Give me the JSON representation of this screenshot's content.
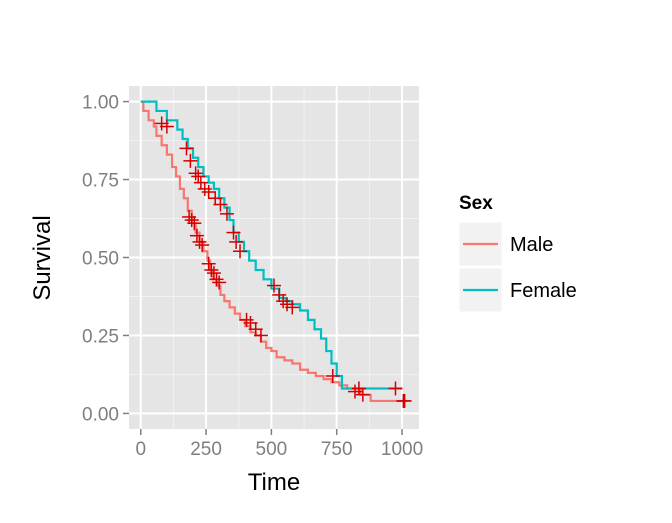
{
  "chart_data": {
    "type": "line",
    "step": true,
    "title": "",
    "xlabel": "Time",
    "ylabel": "Survival",
    "xlim": [
      -45,
      1065
    ],
    "ylim": [
      -0.05,
      1.05
    ],
    "x_ticks": [
      0,
      250,
      500,
      750,
      1000
    ],
    "x_tick_labels": [
      "0",
      "250",
      "500",
      "750",
      "1000"
    ],
    "y_ticks": [
      0.0,
      0.25,
      0.5,
      0.75,
      1.0
    ],
    "y_tick_labels": [
      "0.00",
      "0.25",
      "0.50",
      "0.75",
      "1.00"
    ],
    "grid": true,
    "background": "#e5e5e5",
    "grid_color": "#ffffff",
    "censor_color": "#d40000",
    "legend": {
      "title": "Sex",
      "position": "right",
      "entries": [
        "Male",
        "Female"
      ]
    },
    "series": [
      {
        "name": "Male",
        "color": "#f8766d",
        "x": [
          0,
          10,
          30,
          50,
          60,
          80,
          100,
          120,
          135,
          150,
          165,
          180,
          195,
          210,
          225,
          240,
          255,
          265,
          275,
          290,
          305,
          320,
          340,
          360,
          380,
          400,
          420,
          440,
          460,
          480,
          500,
          520,
          550,
          580,
          610,
          640,
          670,
          700,
          730,
          760,
          790,
          840,
          880,
          1020
        ],
        "y": [
          1.0,
          0.97,
          0.94,
          0.92,
          0.89,
          0.86,
          0.83,
          0.79,
          0.76,
          0.72,
          0.69,
          0.65,
          0.61,
          0.58,
          0.55,
          0.52,
          0.49,
          0.46,
          0.43,
          0.41,
          0.38,
          0.36,
          0.34,
          0.32,
          0.3,
          0.28,
          0.26,
          0.25,
          0.23,
          0.21,
          0.2,
          0.18,
          0.17,
          0.16,
          0.14,
          0.13,
          0.12,
          0.11,
          0.1,
          0.09,
          0.08,
          0.06,
          0.04,
          0.04
        ],
        "censored": [
          [
            80,
            0.93
          ],
          [
            100,
            0.92
          ],
          [
            185,
            0.63
          ],
          [
            195,
            0.62
          ],
          [
            205,
            0.61
          ],
          [
            215,
            0.57
          ],
          [
            225,
            0.55
          ],
          [
            235,
            0.54
          ],
          [
            260,
            0.48
          ],
          [
            270,
            0.46
          ],
          [
            280,
            0.45
          ],
          [
            290,
            0.43
          ],
          [
            300,
            0.42
          ],
          [
            405,
            0.3
          ],
          [
            420,
            0.29
          ],
          [
            440,
            0.27
          ],
          [
            460,
            0.25
          ],
          [
            820,
            0.07
          ],
          [
            850,
            0.06
          ],
          [
            1005,
            0.04
          ]
        ]
      },
      {
        "name": "Female",
        "color": "#00bfc4",
        "x": [
          0,
          60,
          100,
          140,
          160,
          180,
          200,
          220,
          240,
          260,
          280,
          300,
          320,
          340,
          355,
          375,
          395,
          415,
          440,
          470,
          500,
          530,
          555,
          580,
          610,
          640,
          665,
          690,
          710,
          730,
          750,
          770,
          1000
        ],
        "y": [
          1.0,
          0.97,
          0.94,
          0.91,
          0.88,
          0.85,
          0.82,
          0.79,
          0.76,
          0.74,
          0.72,
          0.69,
          0.66,
          0.62,
          0.58,
          0.55,
          0.52,
          0.49,
          0.46,
          0.43,
          0.4,
          0.37,
          0.36,
          0.35,
          0.33,
          0.3,
          0.27,
          0.24,
          0.2,
          0.16,
          0.12,
          0.08,
          0.08
        ],
        "censored": [
          [
            175,
            0.85
          ],
          [
            190,
            0.81
          ],
          [
            210,
            0.77
          ],
          [
            220,
            0.76
          ],
          [
            230,
            0.74
          ],
          [
            245,
            0.72
          ],
          [
            260,
            0.71
          ],
          [
            285,
            0.69
          ],
          [
            305,
            0.67
          ],
          [
            330,
            0.64
          ],
          [
            355,
            0.58
          ],
          [
            365,
            0.55
          ],
          [
            380,
            0.52
          ],
          [
            510,
            0.41
          ],
          [
            530,
            0.38
          ],
          [
            545,
            0.36
          ],
          [
            560,
            0.35
          ],
          [
            580,
            0.34
          ],
          [
            735,
            0.12
          ],
          [
            835,
            0.08
          ],
          [
            975,
            0.08
          ],
          [
            1010,
            0.04
          ]
        ]
      }
    ]
  }
}
